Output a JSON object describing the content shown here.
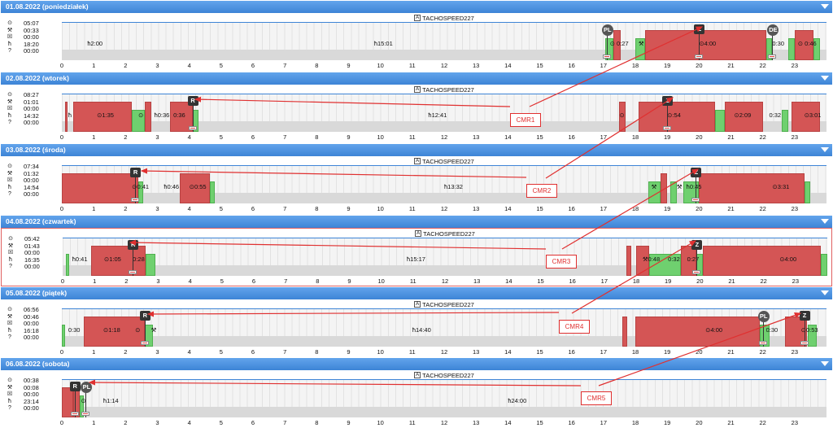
{
  "vehicle": "TACHOSPEED227",
  "vehicle_badge": "A",
  "axis_hours": [
    "0",
    "1",
    "2",
    "3",
    "4",
    "5",
    "6",
    "7",
    "8",
    "9",
    "10",
    "11",
    "12",
    "13",
    "14",
    "15",
    "16",
    "17",
    "18",
    "19",
    "20",
    "21",
    "22",
    "23"
  ],
  "days": [
    {
      "header": "01.08.2022 (poniedziałek)",
      "summary": [
        "05:07",
        "00:33",
        "00:00",
        "18:20",
        "00:00"
      ],
      "labels": [
        {
          "h": 0.8,
          "t": "ħ2:00"
        },
        {
          "h": 9.8,
          "t": "ħ15:01"
        },
        {
          "h": 17.2,
          "t": "⊙ 0:27"
        },
        {
          "h": 18.1,
          "t": "⚒"
        },
        {
          "h": 20.0,
          "t": "⊙4:00"
        },
        {
          "h": 22.3,
          "t": "0:30"
        },
        {
          "h": 23.1,
          "t": "⊙ 0:46"
        }
      ],
      "markers": [
        {
          "h": 17.1,
          "t": "PL",
          "round": true
        },
        {
          "h": 20.0,
          "t": "Z"
        },
        {
          "h": 22.3,
          "t": "DE",
          "round": true
        }
      ]
    },
    {
      "header": "02.08.2022 (wtorek)",
      "summary": [
        "08:27",
        "01:01",
        "00:00",
        "14:32",
        "00:00"
      ],
      "labels": [
        {
          "h": 0.2,
          "t": "ħ"
        },
        {
          "h": 1.1,
          "t": "⊙1:35"
        },
        {
          "h": 2.4,
          "t": "⊙"
        },
        {
          "h": 2.9,
          "t": "ħ0:36"
        },
        {
          "h": 3.5,
          "t": "0:36"
        },
        {
          "h": 11.5,
          "t": "ħ12:41"
        },
        {
          "h": 17.5,
          "t": "⊙"
        },
        {
          "h": 19.0,
          "t": "⊙:54"
        },
        {
          "h": 21.1,
          "t": "⊙2:09"
        },
        {
          "h": 22.2,
          "t": "0:32"
        },
        {
          "h": 23.3,
          "t": "⊙3:01"
        }
      ],
      "markers": [
        {
          "h": 4.1,
          "t": "R"
        },
        {
          "h": 19.0,
          "t": "Z"
        }
      ]
    },
    {
      "header": "03.08.2022 (środa)",
      "summary": [
        "07:34",
        "01:32",
        "00:00",
        "14:54",
        "00:00"
      ],
      "labels": [
        {
          "h": 2.2,
          "t": "⊙0:41"
        },
        {
          "h": 3.2,
          "t": "ħ0:46"
        },
        {
          "h": 4.0,
          "t": "⊙0:55"
        },
        {
          "h": 12.0,
          "t": "ħ13:32"
        },
        {
          "h": 18.5,
          "t": "⚒"
        },
        {
          "h": 19.3,
          "t": "⚒"
        },
        {
          "h": 19.6,
          "t": "ħ0:45"
        },
        {
          "h": 22.3,
          "t": "⊙3:31"
        }
      ],
      "markers": [
        {
          "h": 2.3,
          "t": "R"
        },
        {
          "h": 19.9,
          "t": "Z"
        }
      ]
    },
    {
      "header": "04.08.2022 (czwartek)",
      "summary": [
        "05:42",
        "01:43",
        "00:00",
        "16:35",
        "00:00"
      ],
      "labels": [
        {
          "h": 0.3,
          "t": "ħ0:41"
        },
        {
          "h": 1.3,
          "t": "⊙1:05"
        },
        {
          "h": 2.2,
          "t": "0:28"
        },
        {
          "h": 10.8,
          "t": "ħ15:17"
        },
        {
          "h": 18.2,
          "t": "⚒0:48"
        },
        {
          "h": 19.0,
          "t": "0:32"
        },
        {
          "h": 19.6,
          "t": "0:27"
        },
        {
          "h": 22.5,
          "t": "⊙4:00"
        }
      ],
      "markers": [
        {
          "h": 2.2,
          "t": "R"
        },
        {
          "h": 19.9,
          "t": "Z"
        }
      ]
    },
    {
      "header": "05.08.2022 (piątek)",
      "summary": [
        "06:56",
        "00:46",
        "00:00",
        "16:18",
        "00:00"
      ],
      "labels": [
        {
          "h": 0.2,
          "t": "0:30"
        },
        {
          "h": 1.3,
          "t": "⊙1:18"
        },
        {
          "h": 2.3,
          "t": "⊙"
        },
        {
          "h": 2.8,
          "t": "⚒"
        },
        {
          "h": 11.0,
          "t": "ħ14:40"
        },
        {
          "h": 20.2,
          "t": "⊙4:00"
        },
        {
          "h": 22.1,
          "t": "0:30"
        },
        {
          "h": 23.2,
          "t": "⊙0:53"
        }
      ],
      "markers": [
        {
          "h": 2.6,
          "t": "R"
        },
        {
          "h": 22.0,
          "t": "PL",
          "round": true
        },
        {
          "h": 23.3,
          "t": "Z"
        }
      ]
    },
    {
      "header": "06.08.2022 (sobota)",
      "summary": [
        "00:38",
        "00:08",
        "00:00",
        "23:14",
        "00:00"
      ],
      "labels": [
        {
          "h": 0.6,
          "t": "⊙"
        },
        {
          "h": 1.3,
          "t": "ħ1:14"
        },
        {
          "h": 14.0,
          "t": "ħ24:00"
        }
      ],
      "markers": [
        {
          "h": 0.4,
          "t": "R"
        },
        {
          "h": 0.75,
          "t": "PL",
          "round": true
        }
      ]
    }
  ],
  "cmr": [
    "CMR1",
    "CMR2",
    "CMR3",
    "CMR4",
    "CMR5"
  ],
  "colors": {
    "header": "#4a90e2",
    "activity": "#d45555",
    "work": "#6fd06f",
    "rest": "#d9d9d9",
    "arrow": "#e03030"
  }
}
